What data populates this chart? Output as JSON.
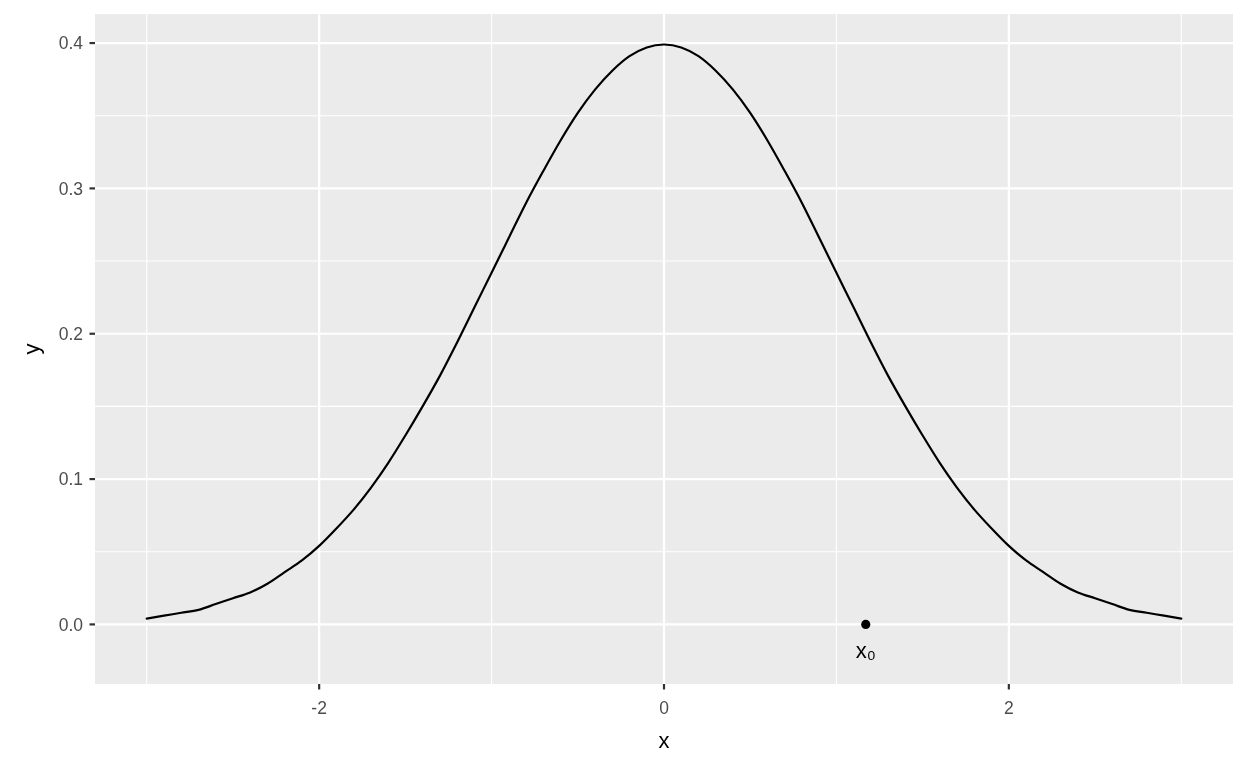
{
  "chart_data": {
    "type": "line",
    "xlabel": "x",
    "ylabel": "y",
    "xlim": [
      -3.3,
      3.3
    ],
    "ylim": [
      -0.041,
      0.42
    ],
    "xticks": [
      -2,
      0,
      2
    ],
    "yticks": [
      {
        "value": 0,
        "label": "0.0"
      },
      0.1,
      0.2,
      0.3,
      0.4
    ],
    "grid": true,
    "series": [
      {
        "color": "#000000",
        "x": [
          -3,
          -2.9,
          -2.8,
          -2.7,
          -2.6,
          -2.5,
          -2.4,
          -2.3,
          -2.2,
          -2.1,
          -2,
          -1.9,
          -1.8,
          -1.7,
          -1.6,
          -1.5,
          -1.4,
          -1.3,
          -1.2,
          -1.1,
          -1,
          -0.9,
          -0.8,
          -0.7,
          -0.6,
          -0.5,
          -0.4,
          -0.3,
          -0.2,
          -0.1,
          0,
          0.1,
          0.2,
          0.3,
          0.4,
          0.5,
          0.6,
          0.7,
          0.8,
          0.9,
          1,
          1.1,
          1.2,
          1.3,
          1.4,
          1.5,
          1.6,
          1.7,
          1.8,
          1.9,
          2,
          2.1,
          2.2,
          2.3,
          2.4,
          2.5,
          2.6,
          2.7,
          2.8,
          2.9,
          3
        ],
        "values": [
          0.004,
          0.006,
          0.008,
          0.01,
          0.014,
          0.018,
          0.022,
          0.028,
          0.036,
          0.044,
          0.054,
          0.066,
          0.079,
          0.094,
          0.111,
          0.13,
          0.15,
          0.171,
          0.194,
          0.218,
          0.242,
          0.266,
          0.29,
          0.312,
          0.333,
          0.352,
          0.368,
          0.381,
          0.391,
          0.397,
          0.399,
          0.397,
          0.391,
          0.381,
          0.368,
          0.352,
          0.333,
          0.312,
          0.29,
          0.266,
          0.242,
          0.218,
          0.194,
          0.171,
          0.15,
          0.13,
          0.111,
          0.094,
          0.079,
          0.066,
          0.054,
          0.044,
          0.036,
          0.028,
          0.022,
          0.018,
          0.014,
          0.01,
          0.008,
          0.006,
          0.004
        ]
      },
      {
        "type": "scatter",
        "color": "#000000",
        "marker": "circle",
        "x": [
          1.17
        ],
        "values": [
          0
        ]
      }
    ],
    "annotations": [
      {
        "text": "x₀",
        "x": 1.17,
        "y": 0
      }
    ]
  }
}
